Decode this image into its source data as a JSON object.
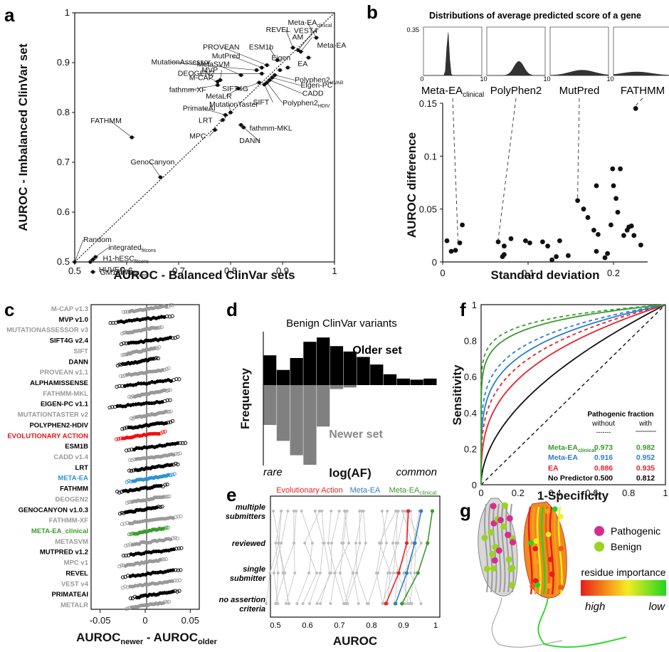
{
  "panel_labels": {
    "a": "a",
    "b": "b",
    "c": "c",
    "d": "d",
    "e": "e",
    "f": "f",
    "g": "g"
  },
  "chart_data": [
    {
      "panel": "a",
      "type": "scatter",
      "xlabel": "AUROC - Balanced ClinVar sets",
      "ylabel": "AUROC - Imbalanced ClinVar set",
      "xlim": [
        0.5,
        1
      ],
      "ylim": [
        0.5,
        1
      ],
      "xticks": [
        "0.5",
        "0.6",
        "0.7",
        "0.8",
        "0.9",
        "1"
      ],
      "yticks": [
        "0.5",
        "0.6",
        "0.7",
        "0.8",
        "0.9",
        "1"
      ],
      "diagonal": "dotted",
      "points": [
        {
          "label": "Meta-EA",
          "sub": "clinical",
          "x": 0.965,
          "y": 0.95
        },
        {
          "label": "REVEL",
          "x": 0.92,
          "y": 0.93
        },
        {
          "label": "VEST4",
          "x": 0.93,
          "y": 0.925
        },
        {
          "label": "AM",
          "x": 0.935,
          "y": 0.922
        },
        {
          "label": "ESM1b",
          "x": 0.89,
          "y": 0.905
        },
        {
          "label": "Meta-EA",
          "x": 0.95,
          "y": 0.91
        },
        {
          "label": "EA",
          "x": 0.91,
          "y": 0.89
        },
        {
          "label": "Eigen",
          "x": 0.895,
          "y": 0.885
        },
        {
          "label": "PROVEAN",
          "x": 0.87,
          "y": 0.895
        },
        {
          "label": "MutPred",
          "x": 0.86,
          "y": 0.89
        },
        {
          "label": "MutationAssessor",
          "x": 0.85,
          "y": 0.885
        },
        {
          "label": "DEOGEN2",
          "x": 0.86,
          "y": 0.878
        },
        {
          "label": "MetaSVM",
          "x": 0.82,
          "y": 0.875
        },
        {
          "label": "MVP",
          "x": 0.78,
          "y": 0.865
        },
        {
          "label": "M-CAP",
          "x": 0.775,
          "y": 0.862
        },
        {
          "label": "fathmm-XF",
          "x": 0.775,
          "y": 0.855
        },
        {
          "label": "Polyphen2",
          "sub": "HVAR",
          "x": 0.885,
          "y": 0.875
        },
        {
          "label": "Eigen-PC",
          "x": 0.88,
          "y": 0.87
        },
        {
          "label": "CADD",
          "x": 0.875,
          "y": 0.865
        },
        {
          "label": "Polyphen2",
          "sub": "HDIV",
          "x": 0.87,
          "y": 0.86
        },
        {
          "label": "SIFT",
          "x": 0.865,
          "y": 0.856
        },
        {
          "label": "SIFT4G",
          "x": 0.855,
          "y": 0.86
        },
        {
          "label": "MetaLR",
          "x": 0.815,
          "y": 0.848
        },
        {
          "label": "MutationTaster",
          "x": 0.8,
          "y": 0.8
        },
        {
          "label": "PrimateAI",
          "x": 0.79,
          "y": 0.795
        },
        {
          "label": "LRT",
          "x": 0.785,
          "y": 0.785
        },
        {
          "label": "fathmm-MKL",
          "x": 0.82,
          "y": 0.775
        },
        {
          "label": "DANN",
          "x": 0.825,
          "y": 0.77
        },
        {
          "label": "MPC",
          "x": 0.77,
          "y": 0.765
        },
        {
          "label": "FATHMM",
          "x": 0.61,
          "y": 0.75
        },
        {
          "label": "GenoCanyon",
          "x": 0.665,
          "y": 0.67
        },
        {
          "label": "Random",
          "x": 0.5,
          "y": 0.5
        },
        {
          "label": "integrated",
          "sub": "fitcons",
          "x": 0.54,
          "y": 0.51
        },
        {
          "label": "H1-hESC",
          "sub": "fitcons",
          "x": 0.535,
          "y": 0.505
        },
        {
          "label": "HUVEC",
          "sub": "fitcons",
          "x": 0.53,
          "y": 0.5
        },
        {
          "label": "GM12878",
          "sub": "fitcons",
          "x": 0.535,
          "y": 0.48
        }
      ]
    },
    {
      "panel": "b",
      "type": "scatter",
      "title": "Distributions of average predicted score of a gene",
      "xlabel": "Standard deviation",
      "ylabel": "AUROC difference",
      "xlim": [
        0,
        0.24
      ],
      "ylim": [
        0,
        0.15
      ],
      "xticks": [
        "0",
        "0.1",
        "0.2"
      ],
      "yticks": [
        "0",
        "0.05",
        "0.1",
        "0.15"
      ],
      "inset_ymax": "0.35",
      "inset_xticks": [
        "0",
        "1"
      ],
      "insets": [
        {
          "name": "Meta-EA",
          "sub": "clinical",
          "x": 0.018,
          "y": 0.015
        },
        {
          "name": "PolyPhen2",
          "x": 0.065,
          "y": 0.018
        },
        {
          "name": "MutPred",
          "x": 0.158,
          "y": 0.058
        },
        {
          "name": "FATHMM",
          "x": 0.226,
          "y": 0.145
        }
      ],
      "points": [
        [
          0.005,
          0.02
        ],
        [
          0.01,
          0.01
        ],
        [
          0.015,
          0.011
        ],
        [
          0.02,
          0.018
        ],
        [
          0.023,
          0.035
        ],
        [
          0.065,
          0.019
        ],
        [
          0.07,
          0.005
        ],
        [
          0.072,
          0.007
        ],
        [
          0.072,
          0.015
        ],
        [
          0.08,
          0.022
        ],
        [
          0.097,
          0.02
        ],
        [
          0.102,
          0.018
        ],
        [
          0.117,
          0.019
        ],
        [
          0.123,
          0.015
        ],
        [
          0.128,
          0.002
        ],
        [
          0.133,
          0.005
        ],
        [
          0.137,
          0.02
        ],
        [
          0.147,
          0.006
        ],
        [
          0.158,
          0.058
        ],
        [
          0.165,
          0.05
        ],
        [
          0.17,
          0.042
        ],
        [
          0.177,
          0.03
        ],
        [
          0.18,
          0.072
        ],
        [
          0.182,
          0.026
        ],
        [
          0.18,
          0.01
        ],
        [
          0.19,
          0.004
        ],
        [
          0.193,
          0.008
        ],
        [
          0.197,
          0.035
        ],
        [
          0.199,
          0.088
        ],
        [
          0.2,
          0.072
        ],
        [
          0.203,
          0.06
        ],
        [
          0.205,
          0.047
        ],
        [
          0.208,
          0.088
        ],
        [
          0.212,
          0.025
        ],
        [
          0.216,
          0.03
        ],
        [
          0.218,
          0.033
        ],
        [
          0.221,
          0.034
        ],
        [
          0.224,
          0.025
        ],
        [
          0.226,
          0.145
        ],
        [
          0.232,
          0.016
        ]
      ]
    },
    {
      "panel": "c",
      "type": "scatter",
      "xlabel": "AUROC",
      "xlabel_sub1": "newer",
      "xlabel_mid": " - AUROC",
      "xlabel_sub2": "older",
      "xlim": [
        -0.06,
        0.06
      ],
      "xticks": [
        "-0.05",
        "0",
        "0.05"
      ],
      "rows": [
        {
          "label": "M-CAP v1.3",
          "color": "#999999"
        },
        {
          "label": "MVP v1.0",
          "color": "#000000"
        },
        {
          "label": "MUTATIONASSESSOR v3",
          "color": "#999999"
        },
        {
          "label": "SIFT4G v2.4",
          "color": "#000000"
        },
        {
          "label": "SIFT",
          "color": "#999999"
        },
        {
          "label": "DANN",
          "color": "#000000"
        },
        {
          "label": "PROVEAN v1.1",
          "color": "#999999"
        },
        {
          "label": "ALPHAMISSENSE",
          "color": "#000000"
        },
        {
          "label": "FATHMM-MKL",
          "color": "#999999"
        },
        {
          "label": "EIGEN-PC v1.1",
          "color": "#000000"
        },
        {
          "label": "MUTATIONTASTER v2",
          "color": "#999999"
        },
        {
          "label": "POLYPHEN2-HDIV",
          "color": "#000000"
        },
        {
          "label": "EVOLUTIONARY ACTION",
          "color": "#ee1111"
        },
        {
          "label": "ESM1B",
          "color": "#000000"
        },
        {
          "label": "CADD v1.4",
          "color": "#999999"
        },
        {
          "label": "LRT",
          "color": "#000000"
        },
        {
          "label": "META-EA",
          "color": "#2a93d5"
        },
        {
          "label": "FATHMM",
          "color": "#000000"
        },
        {
          "label": "DEOGEN2",
          "color": "#999999"
        },
        {
          "label": "GENOCANYON v1.0.3",
          "color": "#000000"
        },
        {
          "label": "FATHMM-XF",
          "color": "#999999"
        },
        {
          "label": "META-EA_clinical",
          "color": "#3c9a2e"
        },
        {
          "label": "METASVM",
          "color": "#999999"
        },
        {
          "label": "MUTPRED v1.2",
          "color": "#000000"
        },
        {
          "label": "MPC v1",
          "color": "#999999"
        },
        {
          "label": "REVEL",
          "color": "#000000"
        },
        {
          "label": "VEST v4",
          "color": "#999999"
        },
        {
          "label": "PRIMATEAI",
          "color": "#000000"
        },
        {
          "label": "METALR",
          "color": "#999999"
        }
      ]
    },
    {
      "panel": "d",
      "type": "bar",
      "title": "Benign ClinVar variants",
      "ylabel": "Frequency",
      "xlabel": "log(AF)",
      "x_left": "rare",
      "x_right": "common",
      "series": [
        {
          "name": "Older set",
          "values": [
            0.55,
            0.28,
            0.5,
            0.8,
            0.88,
            0.72,
            0.62,
            0.52,
            0.38,
            0.2,
            0.12,
            0.1,
            0.12
          ]
        },
        {
          "name": "Newer set",
          "values": [
            0.5,
            0.7,
            0.88,
            1.0,
            0.52,
            0.05,
            0.03,
            0.0,
            0.0,
            0.0,
            0.0,
            0.0,
            0.0
          ]
        }
      ]
    },
    {
      "panel": "e",
      "type": "line",
      "xlabel": "AUROC",
      "xlim": [
        0.5,
        1
      ],
      "xticks": [
        "0.5",
        "0.6",
        "0.7",
        "0.8",
        "0.9",
        "1"
      ],
      "categories": [
        "multiple submitters",
        "reviewed",
        "single submitter",
        "no assertion criteria"
      ],
      "series": [
        {
          "name": "Evolutionary Action",
          "color": "#e8222a",
          "values": [
            0.915,
            0.91,
            0.885,
            0.845
          ]
        },
        {
          "name": "Meta-EA",
          "color": "#2f7fc0",
          "values": [
            0.955,
            0.935,
            0.91,
            0.875
          ]
        },
        {
          "name": "Meta-EA",
          "sub": "clinical",
          "color": "#3c9a2e",
          "values": [
            0.99,
            0.975,
            0.945,
            0.895
          ]
        }
      ]
    },
    {
      "panel": "f",
      "type": "line",
      "xlabel": "1-Specificity",
      "ylabel": "Sensitivity",
      "xlim": [
        0,
        1
      ],
      "ylim": [
        0,
        1
      ],
      "xticks": [
        "0",
        "0.2",
        "0.4",
        "0.6",
        "0.8",
        "1"
      ],
      "yticks": [
        "0",
        "0.2",
        "0.4",
        "0.6",
        "0.8",
        "1"
      ],
      "table_title": "Pathogenic fraction",
      "table_cols": [
        "without",
        "with"
      ],
      "table_dash1": "-------",
      "table_rows": [
        {
          "name": "Meta-EA",
          "sub": "clinical",
          "color": "#3c9a2e",
          "without": "0.973",
          "with": "0.982"
        },
        {
          "name": "Meta-EA",
          "color": "#2a7fcf",
          "without": "0.916",
          "with": "0.952"
        },
        {
          "name": "EA",
          "color": "#e8222a",
          "without": "0.886",
          "with": "0.935"
        },
        {
          "name": "No Predictor",
          "color": "#000000",
          "without": "0.500",
          "with": "0.812"
        }
      ]
    }
  ],
  "panel_g": {
    "legend": [
      {
        "label": "Pathogenic",
        "color": "#d62d8e"
      },
      {
        "label": "Benign",
        "color": "#9ad321"
      }
    ],
    "gradient_title": "residue importance",
    "gradient_left": "high",
    "gradient_right": "low"
  }
}
